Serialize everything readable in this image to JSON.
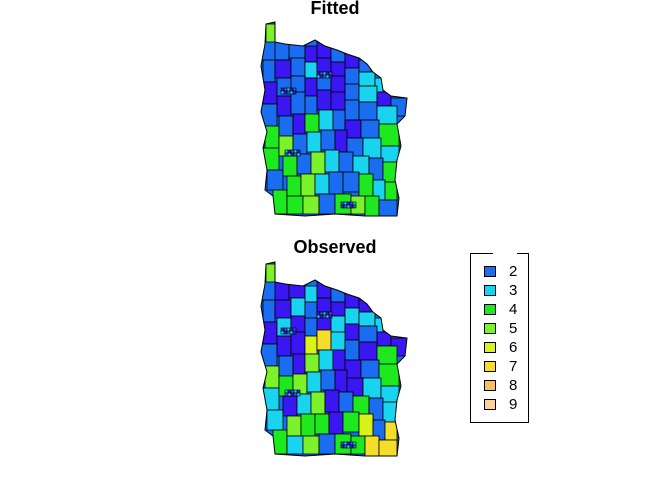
{
  "panels": [
    {
      "title": "Fitted"
    },
    {
      "title": "Observed"
    }
  ],
  "legend": {
    "items": [
      {
        "label": "2",
        "color": "#1a6cf0"
      },
      {
        "label": "3",
        "color": "#19d4ef"
      },
      {
        "label": "4",
        "color": "#1ee81e"
      },
      {
        "label": "5",
        "color": "#7cf22a"
      },
      {
        "label": "6",
        "color": "#d8f21a"
      },
      {
        "label": "7",
        "color": "#f5de2a"
      },
      {
        "label": "8",
        "color": "#f8c25a"
      },
      {
        "label": "9",
        "color": "#fbd39a"
      }
    ]
  },
  "colors": {
    "class_1": "#3a16f2",
    "class_2": "#1a6cf0",
    "class_3": "#19d4ef",
    "class_4": "#1ee81e",
    "class_5": "#7cf22a",
    "class_6": "#d8f21a",
    "class_7": "#f5de2a",
    "class_8": "#f8c25a",
    "class_9": "#fbd39a"
  }
}
